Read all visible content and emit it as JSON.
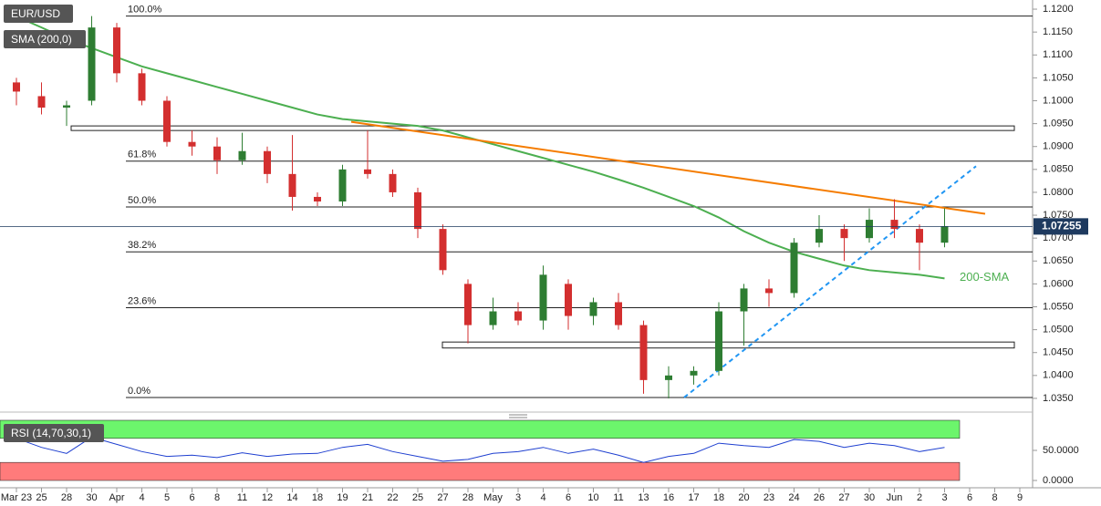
{
  "chart_data": {
    "type": "candlestick",
    "title": "EUR/USD",
    "categories": [
      "Mar 23",
      "25",
      "28",
      "30",
      "Apr",
      "4",
      "5",
      "6",
      "8",
      "11",
      "12",
      "14",
      "18",
      "19",
      "21",
      "22",
      "25",
      "27",
      "28",
      "May",
      "3",
      "4",
      "6",
      "10",
      "11",
      "13",
      "16",
      "17",
      "18",
      "20",
      "23",
      "24",
      "26",
      "27",
      "30",
      "Jun",
      "2",
      "3",
      "6",
      "8",
      "9"
    ],
    "open": [
      1.104,
      1.101,
      1.0985,
      1.1,
      1.116,
      1.106,
      1.1,
      1.091,
      1.09,
      1.087,
      1.089,
      1.084,
      1.079,
      1.078,
      1.085,
      1.084,
      1.08,
      1.072,
      1.06,
      1.051,
      1.054,
      1.052,
      1.06,
      1.053,
      1.056,
      1.051,
      1.039,
      1.04,
      1.041,
      1.054,
      1.059,
      1.058,
      1.069,
      1.072,
      1.07,
      1.074,
      1.072,
      1.069,
      null,
      null,
      null
    ],
    "high": [
      1.105,
      1.104,
      1.1,
      1.1185,
      1.117,
      1.107,
      1.101,
      1.0935,
      1.092,
      1.093,
      1.09,
      1.0925,
      1.08,
      1.086,
      1.0935,
      1.085,
      1.081,
      1.073,
      1.061,
      1.057,
      1.056,
      1.064,
      1.061,
      1.057,
      1.058,
      1.052,
      1.042,
      1.042,
      1.056,
      1.06,
      1.061,
      1.07,
      1.075,
      1.073,
      1.0765,
      1.0785,
      1.073,
      1.0765,
      null,
      null,
      null
    ],
    "low": [
      1.099,
      1.097,
      1.0945,
      1.099,
      1.104,
      1.099,
      1.09,
      1.088,
      1.084,
      1.086,
      1.082,
      1.076,
      1.077,
      1.077,
      1.083,
      1.079,
      1.07,
      1.062,
      1.047,
      1.05,
      1.051,
      1.05,
      1.05,
      1.051,
      1.05,
      1.036,
      1.035,
      1.038,
      1.04,
      1.0465,
      1.055,
      1.057,
      1.068,
      1.065,
      1.069,
      1.07,
      1.063,
      1.068,
      null,
      null,
      null
    ],
    "close": [
      1.102,
      1.0985,
      1.099,
      1.116,
      1.106,
      1.1,
      1.091,
      1.09,
      1.087,
      1.089,
      1.084,
      1.079,
      1.078,
      1.085,
      1.084,
      1.08,
      1.072,
      1.063,
      1.051,
      1.054,
      1.052,
      1.062,
      1.053,
      1.056,
      1.051,
      1.039,
      1.04,
      1.041,
      1.054,
      1.059,
      1.058,
      1.069,
      1.072,
      1.07,
      1.074,
      1.072,
      1.069,
      1.07255,
      null,
      null,
      null
    ],
    "up_color": "#2e7d32",
    "down_color": "#d32f2f",
    "sma": {
      "name": "SMA (200,0)",
      "color": "#4caf50",
      "values": [
        1.1184,
        1.116,
        1.1135,
        1.1115,
        1.1095,
        1.1075,
        1.106,
        1.1045,
        1.103,
        1.1015,
        1.1,
        1.0985,
        1.097,
        1.096,
        1.0955,
        1.095,
        1.0945,
        1.0935,
        1.092,
        1.0905,
        1.089,
        1.0875,
        1.086,
        1.0845,
        1.0828,
        1.081,
        1.079,
        1.077,
        1.0745,
        1.0715,
        1.069,
        1.067,
        1.0655,
        1.064,
        1.063,
        1.0625,
        1.062,
        1.0612,
        null,
        null,
        null
      ]
    },
    "sma_annotation": "200-SMA",
    "last_price": 1.07255,
    "levels": [
      {
        "label": "100.0%",
        "value": 1.1185
      },
      {
        "label": "61.8%",
        "value": 1.0868
      },
      {
        "label": "50.0%",
        "value": 1.0768
      },
      {
        "label": "38.2%",
        "value": 1.067
      },
      {
        "label": "23.6%",
        "value": 1.0548
      },
      {
        "label": "0.0%",
        "value": 1.0352
      }
    ],
    "zones": [
      {
        "low": 1.0935,
        "high": 1.0945
      },
      {
        "low": 1.046,
        "high": 1.0473
      }
    ],
    "trendlines": [
      {
        "start": 1.0954,
        "end": 1.0753,
        "color": "#f57c00",
        "dashed": false
      },
      {
        "start": 1.0352,
        "end": 1.0857,
        "color": "#2196f3",
        "dashed": true
      }
    ],
    "ylim": [
      1.0324,
      1.122
    ],
    "yticks": [
      {
        "value": 1.12,
        "label": "1.1200"
      },
      {
        "value": 1.115,
        "label": "1.1150"
      },
      {
        "value": 1.11,
        "label": "1.1100"
      },
      {
        "value": 1.105,
        "label": "1.1050"
      },
      {
        "value": 1.1,
        "label": "1.1000"
      },
      {
        "value": 1.095,
        "label": "1.0950"
      },
      {
        "value": 1.09,
        "label": "1.0900"
      },
      {
        "value": 1.085,
        "label": "1.0850"
      },
      {
        "value": 1.08,
        "label": "1.0800"
      },
      {
        "value": 1.075,
        "label": "1.0750"
      },
      {
        "value": 1.07,
        "label": "1.0700"
      },
      {
        "value": 1.065,
        "label": "1.0650"
      },
      {
        "value": 1.06,
        "label": "1.0600"
      },
      {
        "value": 1.055,
        "label": "1.0550"
      },
      {
        "value": 1.05,
        "label": "1.0500"
      },
      {
        "value": 1.045,
        "label": "1.0450"
      },
      {
        "value": 1.04,
        "label": "1.0400"
      },
      {
        "value": 1.035,
        "label": "1.0350"
      }
    ],
    "rsi": {
      "name": "RSI (14,70,30,1)",
      "color": "#1e3fd0",
      "upper": 70,
      "lower": 30,
      "upper_color": "#6cf56c",
      "lower_color": "#ff7b7b",
      "values": [
        70,
        55,
        45,
        72,
        60,
        48,
        40,
        42,
        38,
        46,
        40,
        44,
        45,
        55,
        60,
        48,
        40,
        32,
        35,
        45,
        48,
        55,
        45,
        52,
        42,
        30,
        40,
        45,
        62,
        58,
        55,
        68,
        65,
        55,
        62,
        58,
        48,
        55,
        null,
        null,
        null
      ],
      "ylim": [
        0,
        100
      ],
      "yticks": [
        {
          "value": 50,
          "label": "50.0000"
        },
        {
          "value": 0,
          "label": "0.0000"
        }
      ]
    }
  }
}
